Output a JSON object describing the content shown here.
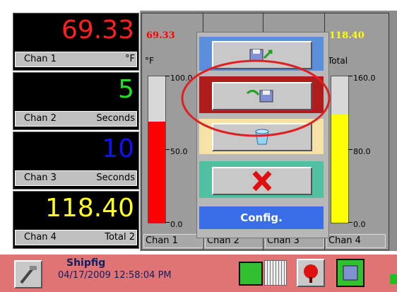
{
  "channels": [
    {
      "value": "69.33",
      "label": "Chan 1",
      "unit": "°F",
      "color": "#ff2020"
    },
    {
      "value": "5",
      "label": "Chan 2",
      "unit": "Seconds",
      "color": "#20e020"
    },
    {
      "value": "10",
      "label": "Chan 3",
      "unit": "Seconds",
      "color": "#1010ff"
    },
    {
      "value": "118.40",
      "label": "Chan 4",
      "unit": "Total 2",
      "color": "#ffff20"
    }
  ],
  "bars": [
    {
      "value": "69.33",
      "unit": "°F",
      "ticks": [
        "100.0",
        "50.0",
        "0.0"
      ],
      "label": "Chan 1",
      "color": "#ff0000"
    },
    {
      "label": "Chan 2"
    },
    {
      "label": "Chan 3"
    },
    {
      "value": "118.40",
      "unit": "Total",
      "ticks": [
        "160.0",
        "80.0",
        "0.0"
      ],
      "label": "Chan 4",
      "color": "#ffff00"
    }
  ],
  "menu": {
    "title": "Config."
  },
  "status": {
    "name": "Shipfig",
    "datetime": "04/17/2009 12:58:04 PM"
  }
}
